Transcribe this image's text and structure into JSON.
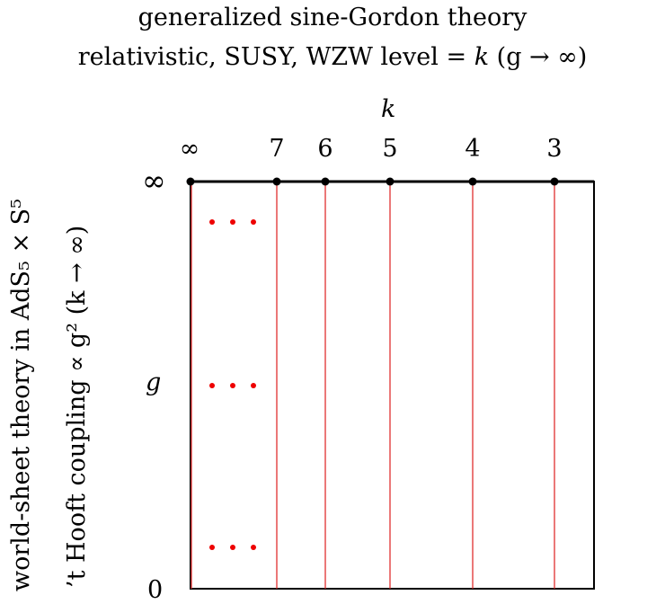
{
  "title_line1": "generalized sine-Gordon theory",
  "title_line2_prefix": "relativistic, SUSY, WZW level = ",
  "title_line2_k": "k",
  "title_line2_suffix": " (g → ∞)",
  "k_axis_label": "k",
  "g_axis_label": "g",
  "left_top_label": "∞",
  "left_bottom_label": "0",
  "top_ticks": [
    "∞",
    "7",
    "6",
    "5",
    "4",
    "3"
  ],
  "ylabel_line1": "world-sheet theory in AdS₅ × S⁵",
  "ylabel_line2": "’t Hooft coupling ∝ g² (k → ∞)",
  "colors": {
    "line": "#e03030",
    "dots": "#ee0000",
    "frame": "#000000"
  }
}
